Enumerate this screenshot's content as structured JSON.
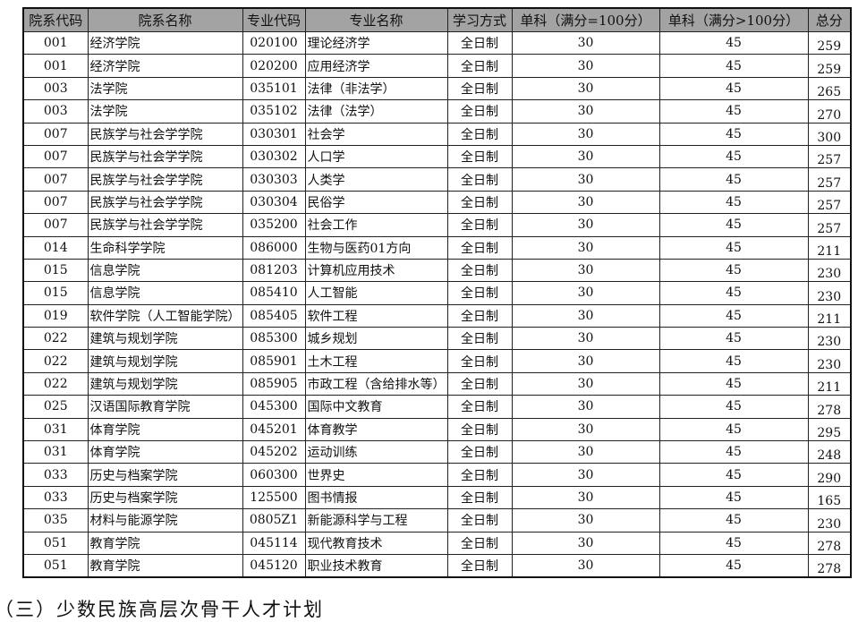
{
  "headers": [
    "院系代码",
    "院系名称",
    "专业代码",
    "专业名称",
    "学习方式",
    "单科（满分=100分）",
    "单科（满分>100分）",
    "总分"
  ],
  "rows": [
    [
      "001",
      "经济学院",
      "020100",
      "理论经济学",
      "全日制",
      "30",
      "45",
      "259"
    ],
    [
      "001",
      "经济学院",
      "020200",
      "应用经济学",
      "全日制",
      "30",
      "45",
      "259"
    ],
    [
      "003",
      "法学院",
      "035101",
      "法律（非法学）",
      "全日制",
      "30",
      "45",
      "265"
    ],
    [
      "003",
      "法学院",
      "035102",
      "法律（法学）",
      "全日制",
      "30",
      "45",
      "270"
    ],
    [
      "007",
      "民族学与社会学学院",
      "030301",
      "社会学",
      "全日制",
      "30",
      "45",
      "300"
    ],
    [
      "007",
      "民族学与社会学学院",
      "030302",
      "人口学",
      "全日制",
      "30",
      "45",
      "257"
    ],
    [
      "007",
      "民族学与社会学学院",
      "030303",
      "人类学",
      "全日制",
      "30",
      "45",
      "257"
    ],
    [
      "007",
      "民族学与社会学学院",
      "030304",
      "民俗学",
      "全日制",
      "30",
      "45",
      "257"
    ],
    [
      "007",
      "民族学与社会学学院",
      "035200",
      "社会工作",
      "全日制",
      "30",
      "45",
      "257"
    ],
    [
      "014",
      "生命科学学院",
      "086000",
      "生物与医药01方向",
      "全日制",
      "30",
      "45",
      "211"
    ],
    [
      "015",
      "信息学院",
      "081203",
      "计算机应用技术",
      "全日制",
      "30",
      "45",
      "230"
    ],
    [
      "015",
      "信息学院",
      "085410",
      "人工智能",
      "全日制",
      "30",
      "45",
      "230"
    ],
    [
      "019",
      "软件学院（人工智能学院）",
      "085405",
      "软件工程",
      "全日制",
      "30",
      "45",
      "211"
    ],
    [
      "022",
      "建筑与规划学院",
      "085300",
      "城乡规划",
      "全日制",
      "30",
      "45",
      "230"
    ],
    [
      "022",
      "建筑与规划学院",
      "085901",
      "土木工程",
      "全日制",
      "30",
      "45",
      "230"
    ],
    [
      "022",
      "建筑与规划学院",
      "085905",
      "市政工程（含给排水等）",
      "全日制",
      "30",
      "45",
      "211"
    ],
    [
      "025",
      "汉语国际教育学院",
      "045300",
      "国际中文教育",
      "全日制",
      "30",
      "45",
      "278"
    ],
    [
      "031",
      "体育学院",
      "045201",
      "体育教学",
      "全日制",
      "30",
      "45",
      "295"
    ],
    [
      "031",
      "体育学院",
      "045202",
      "运动训练",
      "全日制",
      "30",
      "45",
      "248"
    ],
    [
      "033",
      "历史与档案学院",
      "060300",
      "世界史",
      "全日制",
      "30",
      "45",
      "290"
    ],
    [
      "033",
      "历史与档案学院",
      "125500",
      "图书情报",
      "全日制",
      "30",
      "45",
      "165"
    ],
    [
      "035",
      "材料与能源学院",
      "0805Z1",
      "新能源科学与工程",
      "全日制",
      "30",
      "45",
      "230"
    ],
    [
      "051",
      "教育学院",
      "045114",
      "现代教育技术",
      "全日制",
      "30",
      "45",
      "278"
    ],
    [
      "051",
      "教育学院",
      "045120",
      "职业技术教育",
      "全日制",
      "30",
      "45",
      "278"
    ]
  ],
  "footer": "（三）少数民族高层次骨干人才计划",
  "colors": {
    "header_bg": "#a3a3a3"
  }
}
